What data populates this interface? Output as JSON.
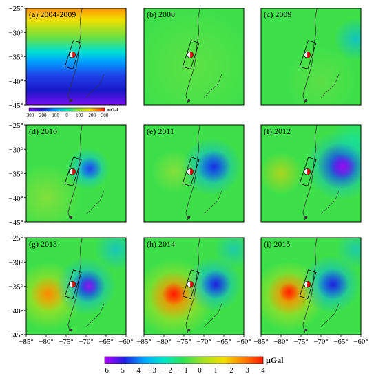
{
  "chart_data": {
    "type": "heatmap",
    "panels": [
      {
        "label": "(a) 2004-2009"
      },
      {
        "label": "(b) 2008"
      },
      {
        "label": "(c) 2009"
      },
      {
        "label": "(d) 2010"
      },
      {
        "label": "(e) 2011"
      },
      {
        "label": "(f) 2012"
      },
      {
        "label": "(g) 2013"
      },
      {
        "label": "(h) 2014"
      },
      {
        "label": "(i) 2015"
      }
    ],
    "lon_ticks": [
      "−85°",
      "−80°",
      "−75°",
      "−70°",
      "−65°",
      "−60°"
    ],
    "lat_ticks": [
      "−25°",
      "−30°",
      "−35°",
      "−40°",
      "−45°"
    ],
    "xlim": [
      -85,
      -60
    ],
    "ylim": [
      -45,
      -25
    ],
    "colorbar_main": {
      "ticks": [
        "−6",
        "−5",
        "−4",
        "−3",
        "−2",
        "−1",
        "0",
        "1",
        "2",
        "3",
        "4"
      ],
      "range": [
        -6,
        4
      ],
      "unit": "μGal",
      "colors": [
        "#b400ff",
        "#2020e0",
        "#00a8ff",
        "#00e6c8",
        "#30e050",
        "#a8e020",
        "#f0e000",
        "#ff8000",
        "#ff1a00"
      ]
    },
    "colorbar_a": {
      "ticks": [
        "−300",
        "−200",
        "−100",
        "0",
        "100",
        "200",
        "300"
      ],
      "range": [
        -300,
        300
      ],
      "unit": "mGal"
    }
  }
}
